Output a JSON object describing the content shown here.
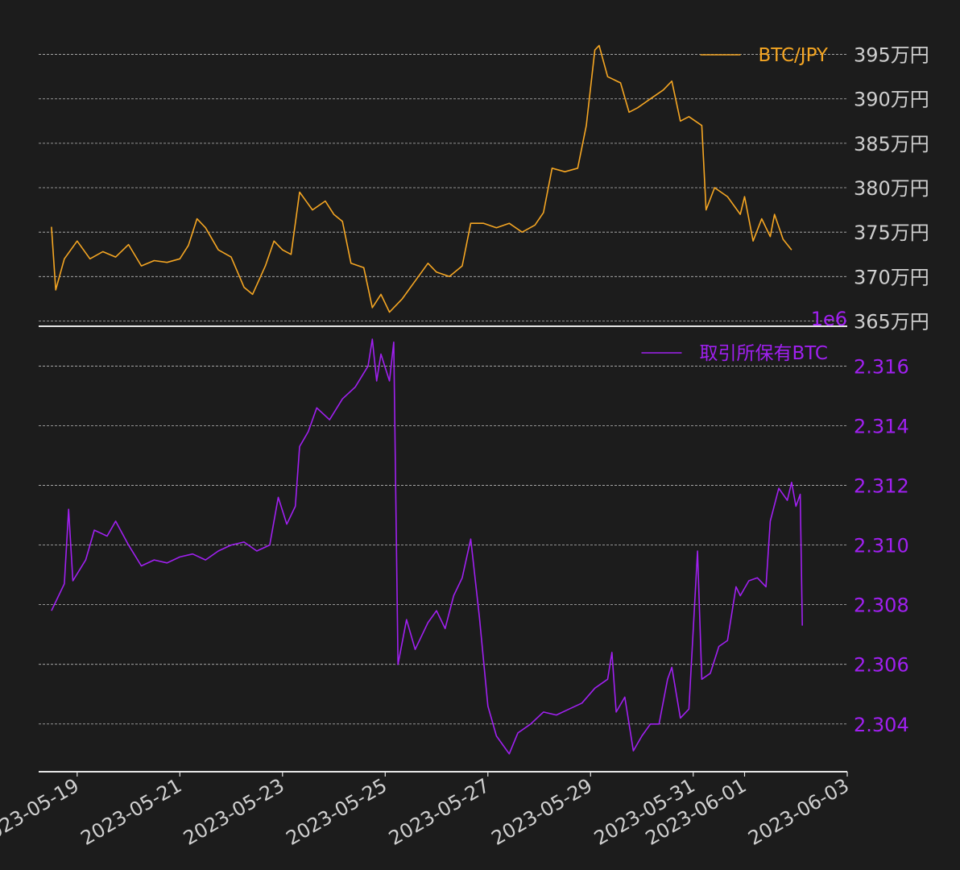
{
  "colors": {
    "background": "#1c1c1c",
    "price_line": "#f5a623",
    "holdings_line": "#a020f0",
    "tick_text": "#cfcfcf",
    "grid": "#b8b8b8"
  },
  "chart_data": [
    {
      "type": "line",
      "legend": "top-right",
      "grid": true,
      "y_axis_side": "right",
      "ylim": [
        3645000,
        3975000
      ],
      "yticks": [
        3650000,
        3700000,
        3750000,
        3800000,
        3850000,
        3900000,
        3950000
      ],
      "ytick_labels": [
        "365万円",
        "370万円",
        "375万円",
        "380万円",
        "385万円",
        "390万円",
        "395万円"
      ],
      "series": [
        {
          "name": "BTC/JPY",
          "color": "#f5a623",
          "points": [
            [
              "2023-05-18T12:00",
              3756000
            ],
            [
              "2023-05-18T14:00",
              3685000
            ],
            [
              "2023-05-18T18:00",
              3720000
            ],
            [
              "2023-05-19T00:00",
              3740000
            ],
            [
              "2023-05-19T06:00",
              3720000
            ],
            [
              "2023-05-19T12:00",
              3728000
            ],
            [
              "2023-05-19T18:00",
              3722000
            ],
            [
              "2023-05-20T00:00",
              3736000
            ],
            [
              "2023-05-20T06:00",
              3712000
            ],
            [
              "2023-05-20T12:00",
              3718000
            ],
            [
              "2023-05-20T18:00",
              3716000
            ],
            [
              "2023-05-21T00:00",
              3720000
            ],
            [
              "2023-05-21T04:00",
              3735000
            ],
            [
              "2023-05-21T08:00",
              3765000
            ],
            [
              "2023-05-21T12:00",
              3755000
            ],
            [
              "2023-05-21T18:00",
              3730000
            ],
            [
              "2023-05-22T00:00",
              3722000
            ],
            [
              "2023-05-22T06:00",
              3688000
            ],
            [
              "2023-05-22T10:00",
              3680000
            ],
            [
              "2023-05-22T16:00",
              3712000
            ],
            [
              "2023-05-22T20:00",
              3740000
            ],
            [
              "2023-05-23T00:00",
              3730000
            ],
            [
              "2023-05-23T04:00",
              3725000
            ],
            [
              "2023-05-23T08:00",
              3795000
            ],
            [
              "2023-05-23T14:00",
              3775000
            ],
            [
              "2023-05-23T20:00",
              3785000
            ],
            [
              "2023-05-24T00:00",
              3770000
            ],
            [
              "2023-05-24T04:00",
              3762000
            ],
            [
              "2023-05-24T08:00",
              3715000
            ],
            [
              "2023-05-24T14:00",
              3710000
            ],
            [
              "2023-05-24T18:00",
              3665000
            ],
            [
              "2023-05-24T22:00",
              3680000
            ],
            [
              "2023-05-25T02:00",
              3660000
            ],
            [
              "2023-05-25T08:00",
              3675000
            ],
            [
              "2023-05-25T14:00",
              3695000
            ],
            [
              "2023-05-25T20:00",
              3715000
            ],
            [
              "2023-05-26T00:00",
              3705000
            ],
            [
              "2023-05-26T06:00",
              3700000
            ],
            [
              "2023-05-26T12:00",
              3712000
            ],
            [
              "2023-05-26T16:00",
              3760000
            ],
            [
              "2023-05-26T22:00",
              3760000
            ],
            [
              "2023-05-27T04:00",
              3755000
            ],
            [
              "2023-05-27T10:00",
              3760000
            ],
            [
              "2023-05-27T16:00",
              3750000
            ],
            [
              "2023-05-27T22:00",
              3758000
            ],
            [
              "2023-05-28T02:00",
              3772000
            ],
            [
              "2023-05-28T06:00",
              3822000
            ],
            [
              "2023-05-28T12:00",
              3818000
            ],
            [
              "2023-05-28T18:00",
              3822000
            ],
            [
              "2023-05-28T22:00",
              3870000
            ],
            [
              "2023-05-29T02:00",
              3955000
            ],
            [
              "2023-05-29T04:00",
              3960000
            ],
            [
              "2023-05-29T08:00",
              3925000
            ],
            [
              "2023-05-29T14:00",
              3918000
            ],
            [
              "2023-05-29T18:00",
              3885000
            ],
            [
              "2023-05-29T22:00",
              3890000
            ],
            [
              "2023-05-30T04:00",
              3900000
            ],
            [
              "2023-05-30T10:00",
              3910000
            ],
            [
              "2023-05-30T14:00",
              3920000
            ],
            [
              "2023-05-30T18:00",
              3875000
            ],
            [
              "2023-05-30T22:00",
              3880000
            ],
            [
              "2023-05-31T04:00",
              3870000
            ],
            [
              "2023-05-31T06:00",
              3775000
            ],
            [
              "2023-05-31T10:00",
              3800000
            ],
            [
              "2023-05-31T16:00",
              3790000
            ],
            [
              "2023-05-31T22:00",
              3770000
            ],
            [
              "2023-06-01T00:00",
              3790000
            ],
            [
              "2023-06-01T04:00",
              3740000
            ],
            [
              "2023-06-01T08:00",
              3765000
            ],
            [
              "2023-06-01T12:00",
              3745000
            ],
            [
              "2023-06-01T14:00",
              3770000
            ],
            [
              "2023-06-01T18:00",
              3742000
            ],
            [
              "2023-06-01T22:00",
              3730000
            ]
          ]
        }
      ]
    },
    {
      "type": "line",
      "legend": "top-right",
      "grid": true,
      "y_axis_side": "right",
      "offset_text": "1e6",
      "ylim": [
        2302400,
        2317200
      ],
      "yticks": [
        2304000,
        2306000,
        2308000,
        2310000,
        2312000,
        2314000,
        2316000
      ],
      "ytick_labels": [
        "2.304",
        "2.306",
        "2.308",
        "2.310",
        "2.312",
        "2.314",
        "2.316"
      ],
      "xticks": [
        "2023-05-19",
        "2023-05-21",
        "2023-05-23",
        "2023-05-25",
        "2023-05-27",
        "2023-05-29",
        "2023-05-31",
        "2023-06-01",
        "2023-06-03"
      ],
      "series": [
        {
          "name": "取引所保有BTC",
          "color": "#a020f0",
          "points": [
            [
              "2023-05-18T12:00",
              2307800
            ],
            [
              "2023-05-18T18:00",
              2308700
            ],
            [
              "2023-05-18T20:00",
              2311200
            ],
            [
              "2023-05-18T22:00",
              2308800
            ],
            [
              "2023-05-19T04:00",
              2309500
            ],
            [
              "2023-05-19T08:00",
              2310500
            ],
            [
              "2023-05-19T14:00",
              2310300
            ],
            [
              "2023-05-19T18:00",
              2310800
            ],
            [
              "2023-05-20T00:00",
              2310000
            ],
            [
              "2023-05-20T06:00",
              2309300
            ],
            [
              "2023-05-20T12:00",
              2309500
            ],
            [
              "2023-05-20T18:00",
              2309400
            ],
            [
              "2023-05-21T00:00",
              2309600
            ],
            [
              "2023-05-21T06:00",
              2309700
            ],
            [
              "2023-05-21T12:00",
              2309500
            ],
            [
              "2023-05-21T18:00",
              2309800
            ],
            [
              "2023-05-22T00:00",
              2310000
            ],
            [
              "2023-05-22T06:00",
              2310100
            ],
            [
              "2023-05-22T12:00",
              2309800
            ],
            [
              "2023-05-22T18:00",
              2310000
            ],
            [
              "2023-05-22T22:00",
              2311600
            ],
            [
              "2023-05-23T02:00",
              2310700
            ],
            [
              "2023-05-23T06:00",
              2311300
            ],
            [
              "2023-05-23T08:00",
              2313300
            ],
            [
              "2023-05-23T12:00",
              2313800
            ],
            [
              "2023-05-23T16:00",
              2314600
            ],
            [
              "2023-05-23T22:00",
              2314200
            ],
            [
              "2023-05-24T04:00",
              2314900
            ],
            [
              "2023-05-24T10:00",
              2315300
            ],
            [
              "2023-05-24T16:00",
              2316000
            ],
            [
              "2023-05-24T18:00",
              2316900
            ],
            [
              "2023-05-24T20:00",
              2315500
            ],
            [
              "2023-05-24T22:00",
              2316400
            ],
            [
              "2023-05-25T02:00",
              2315500
            ],
            [
              "2023-05-25T04:00",
              2316800
            ],
            [
              "2023-05-25T06:00",
              2306000
            ],
            [
              "2023-05-25T10:00",
              2307500
            ],
            [
              "2023-05-25T14:00",
              2306500
            ],
            [
              "2023-05-25T20:00",
              2307400
            ],
            [
              "2023-05-26T00:00",
              2307800
            ],
            [
              "2023-05-26T04:00",
              2307200
            ],
            [
              "2023-05-26T08:00",
              2308300
            ],
            [
              "2023-05-26T12:00",
              2308900
            ],
            [
              "2023-05-26T16:00",
              2310200
            ],
            [
              "2023-05-26T20:00",
              2307600
            ],
            [
              "2023-05-27T00:00",
              2304600
            ],
            [
              "2023-05-27T04:00",
              2303600
            ],
            [
              "2023-05-27T10:00",
              2303000
            ],
            [
              "2023-05-27T14:00",
              2303700
            ],
            [
              "2023-05-27T20:00",
              2304000
            ],
            [
              "2023-05-28T02:00",
              2304400
            ],
            [
              "2023-05-28T08:00",
              2304300
            ],
            [
              "2023-05-28T14:00",
              2304500
            ],
            [
              "2023-05-28T20:00",
              2304700
            ],
            [
              "2023-05-29T02:00",
              2305200
            ],
            [
              "2023-05-29T08:00",
              2305500
            ],
            [
              "2023-05-29T10:00",
              2306400
            ],
            [
              "2023-05-29T12:00",
              2304400
            ],
            [
              "2023-05-29T16:00",
              2304900
            ],
            [
              "2023-05-29T20:00",
              2303100
            ],
            [
              "2023-05-30T00:00",
              2303600
            ],
            [
              "2023-05-30T04:00",
              2304000
            ],
            [
              "2023-05-30T08:00",
              2304000
            ],
            [
              "2023-05-30T12:00",
              2305500
            ],
            [
              "2023-05-30T14:00",
              2305900
            ],
            [
              "2023-05-30T18:00",
              2304200
            ],
            [
              "2023-05-30T22:00",
              2304500
            ],
            [
              "2023-05-31T02:00",
              2309800
            ],
            [
              "2023-05-31T04:00",
              2305500
            ],
            [
              "2023-05-31T08:00",
              2305700
            ],
            [
              "2023-05-31T12:00",
              2306600
            ],
            [
              "2023-05-31T16:00",
              2306800
            ],
            [
              "2023-05-31T20:00",
              2308600
            ],
            [
              "2023-05-31T22:00",
              2308300
            ],
            [
              "2023-06-01T02:00",
              2308800
            ],
            [
              "2023-06-01T06:00",
              2308900
            ],
            [
              "2023-06-01T10:00",
              2308600
            ],
            [
              "2023-06-01T12:00",
              2310800
            ],
            [
              "2023-06-01T16:00",
              2311900
            ],
            [
              "2023-06-01T20:00",
              2311500
            ],
            [
              "2023-06-01T22:00",
              2312100
            ],
            [
              "2023-06-02T00:00",
              2311300
            ],
            [
              "2023-06-02T02:00",
              2311700
            ],
            [
              "2023-06-02T03:00",
              2307300
            ]
          ]
        }
      ]
    }
  ]
}
